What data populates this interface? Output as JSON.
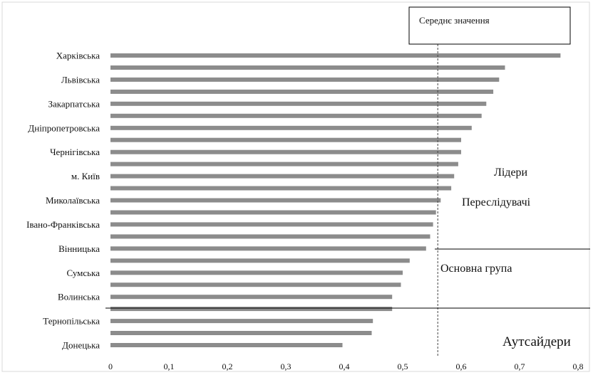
{
  "chart_data": {
    "type": "bar",
    "orientation": "horizontal",
    "xlim": [
      0,
      0.8
    ],
    "x_ticks": [
      "0",
      "0,1",
      "0,2",
      "0,3",
      "0,4",
      "0,5",
      "0,6",
      "0,7",
      "0,8"
    ],
    "mean_value": 0.56,
    "mean_label": "Середнє значення",
    "categories": [
      "Харківська",
      "",
      "Львівська",
      "",
      "Закарпатська",
      "",
      "Дніпропетровська",
      "",
      "Чернігівська",
      "",
      "м. Київ",
      "",
      "Миколаївська",
      "",
      "Івано-Франківська",
      "",
      "Вінницька",
      "",
      "Сумська",
      "",
      "Волинська",
      "",
      "Тернопільська",
      "",
      "Донецька"
    ],
    "values": [
      0.77,
      0.675,
      0.665,
      0.655,
      0.643,
      0.635,
      0.618,
      0.6,
      0.6,
      0.595,
      0.588,
      0.583,
      0.565,
      0.557,
      0.552,
      0.547,
      0.54,
      0.512,
      0.5,
      0.497,
      0.482,
      0.482,
      0.449,
      0.447,
      0.397
    ],
    "group_labels": [
      "Лідери",
      "Переслідувачі",
      "Основна група",
      "Аутсайдери"
    ],
    "legend": "top-right",
    "grid": false
  }
}
